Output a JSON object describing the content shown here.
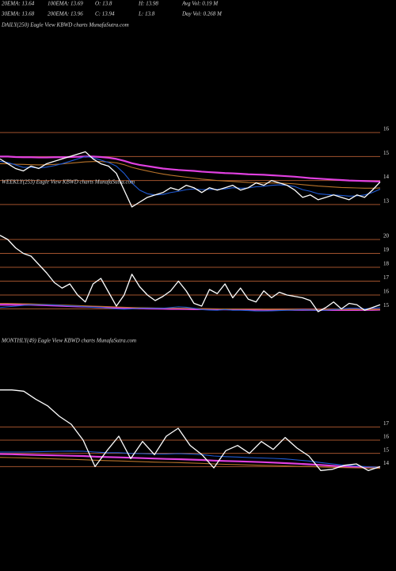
{
  "header": [
    [
      "20EMA: 13.64",
      "100EMA: 13.69",
      "O: 13.8",
      "H: 13.98",
      "Avg Vol: 0.19 M"
    ],
    [
      "30EMA: 13.68",
      "200EMA: 13.96",
      "C: 13.94",
      "L: 13.8",
      "Day Vol: 0.268 M"
    ]
  ],
  "chart_data": [
    {
      "type": "line",
      "title": "DAILY(250) Eagle View KBWD charts MunafaSutra.com",
      "categories": [
        null,
        null,
        null,
        null,
        null,
        null,
        null,
        null,
        null,
        null,
        null,
        null,
        null,
        null,
        null,
        null,
        null,
        null,
        null,
        null,
        null,
        null,
        null,
        null,
        null,
        null,
        null,
        null,
        null,
        null,
        null,
        null,
        null,
        null,
        null,
        null,
        null,
        null,
        null,
        null,
        null,
        null,
        null,
        null,
        null,
        null,
        null,
        null,
        null,
        null
      ],
      "ylim": [
        12.6,
        16.4
      ],
      "yticks": [
        13,
        14,
        15,
        16
      ],
      "grid": true,
      "grid_color": "#a0522d",
      "series": [
        {
          "color": "#e040e0",
          "values": [
            15.0,
            15.0,
            14.98,
            14.97,
            14.97,
            14.96,
            14.96,
            14.97,
            14.97,
            14.98,
            14.99,
            15.0,
            15.0,
            14.98,
            14.95,
            14.9,
            14.82,
            14.72,
            14.65,
            14.6,
            14.55,
            14.5,
            14.47,
            14.44,
            14.42,
            14.4,
            14.37,
            14.35,
            14.33,
            14.31,
            14.3,
            14.28,
            14.26,
            14.25,
            14.24,
            14.22,
            14.2,
            14.18,
            14.16,
            14.13,
            14.1,
            14.08,
            14.06,
            14.04,
            14.02,
            14.0,
            13.99,
            13.98,
            13.97,
            13.96
          ]
        },
        {
          "color": "#b8732a",
          "values": [
            14.7,
            14.7,
            14.68,
            14.67,
            14.66,
            14.65,
            14.66,
            14.67,
            14.69,
            14.72,
            14.75,
            14.78,
            14.79,
            14.79,
            14.77,
            14.74,
            14.66,
            14.55,
            14.47,
            14.4,
            14.33,
            14.27,
            14.22,
            14.18,
            14.14,
            14.1,
            14.06,
            14.03,
            14.0,
            13.98,
            13.96,
            13.94,
            13.92,
            13.91,
            13.9,
            13.9,
            13.89,
            13.88,
            13.86,
            13.83,
            13.8,
            13.77,
            13.75,
            13.73,
            13.71,
            13.7,
            13.69,
            13.68,
            13.68,
            13.69
          ]
        },
        {
          "color": "#1f5bd6",
          "values": [
            14.8,
            14.75,
            14.65,
            14.55,
            14.55,
            14.52,
            14.56,
            14.62,
            14.7,
            14.8,
            14.9,
            15.0,
            14.95,
            14.85,
            14.75,
            14.6,
            14.3,
            13.9,
            13.6,
            13.45,
            13.4,
            13.42,
            13.5,
            13.55,
            13.62,
            13.65,
            13.62,
            13.63,
            13.63,
            13.65,
            13.7,
            13.68,
            13.69,
            13.74,
            13.76,
            13.8,
            13.82,
            13.8,
            13.75,
            13.62,
            13.55,
            13.45,
            13.42,
            13.4,
            13.38,
            13.35,
            13.36,
            13.4,
            13.5,
            13.64
          ]
        },
        {
          "color": "#ffffff",
          "values": [
            14.9,
            14.7,
            14.5,
            14.4,
            14.6,
            14.5,
            14.7,
            14.8,
            14.9,
            15.0,
            15.1,
            15.2,
            14.9,
            14.7,
            14.6,
            14.3,
            13.6,
            12.9,
            13.1,
            13.3,
            13.4,
            13.5,
            13.7,
            13.6,
            13.8,
            13.7,
            13.5,
            13.7,
            13.6,
            13.7,
            13.8,
            13.6,
            13.7,
            13.9,
            13.8,
            14.0,
            13.9,
            13.8,
            13.6,
            13.3,
            13.4,
            13.2,
            13.3,
            13.4,
            13.3,
            13.2,
            13.4,
            13.3,
            13.6,
            13.94
          ]
        }
      ]
    },
    {
      "type": "line",
      "title": "WEEKLY(253) Eagle View KBWD charts MunafaSutra.com",
      "categories": [
        null,
        null,
        null,
        null,
        null,
        null,
        null,
        null,
        null,
        null,
        null,
        null,
        null,
        null,
        null,
        null,
        null,
        null,
        null,
        null,
        null,
        null,
        null,
        null,
        null,
        null,
        null,
        null,
        null,
        null,
        null,
        null,
        null,
        null,
        null,
        null,
        null,
        null,
        null,
        null,
        null,
        null,
        null,
        null,
        null,
        null,
        null,
        null,
        null,
        null
      ],
      "ylim": [
        14.4,
        20.4
      ],
      "yticks": [
        15,
        16,
        17,
        18,
        19,
        20
      ],
      "grid": true,
      "grid_color": "#a0522d",
      "series": [
        {
          "color": "#e040e0",
          "values": [
            15.3,
            15.3,
            15.3,
            15.3,
            15.3,
            15.28,
            15.26,
            15.24,
            15.22,
            15.2,
            15.18,
            15.16,
            15.14,
            15.12,
            15.1,
            15.08,
            15.06,
            15.05,
            15.04,
            15.03,
            15.02,
            15.01,
            15.0,
            15.0,
            14.99,
            14.98,
            14.98,
            14.97,
            14.97,
            14.96,
            14.96,
            14.95,
            14.95,
            14.95,
            14.94,
            14.94,
            14.94,
            14.94,
            14.93,
            14.93,
            14.93,
            14.92,
            14.92,
            14.92,
            14.92,
            14.92,
            14.92,
            14.93,
            14.93,
            14.94
          ]
        },
        {
          "color": "#b8732a",
          "values": [
            15.4,
            15.4,
            15.38,
            15.37,
            15.36,
            15.34,
            15.32,
            15.3,
            15.28,
            15.26,
            15.24,
            15.22,
            15.2,
            15.18,
            15.16,
            15.14,
            15.12,
            15.1,
            15.09,
            15.08,
            15.07,
            15.06,
            15.05,
            15.05,
            15.04,
            15.03,
            15.02,
            15.01,
            15.0,
            15.0,
            14.99,
            14.99,
            14.98,
            14.98,
            14.97,
            14.97,
            14.96,
            14.96,
            14.96,
            14.95,
            14.95,
            14.95,
            14.95,
            14.95,
            14.95,
            14.95,
            14.95,
            14.95,
            14.95,
            14.95
          ]
        },
        {
          "color": "#1f5bd6",
          "values": [
            15.1,
            15.15,
            15.2,
            15.25,
            15.3,
            15.3,
            15.3,
            15.28,
            15.25,
            15.22,
            15.2,
            15.15,
            15.12,
            15.1,
            15.05,
            15.0,
            14.98,
            15.0,
            15.05,
            15.05,
            15.05,
            15.05,
            15.1,
            15.15,
            15.12,
            15.05,
            14.95,
            14.92,
            14.9,
            14.95,
            14.9,
            14.9,
            14.88,
            14.85,
            14.85,
            14.86,
            14.88,
            14.9,
            14.92,
            14.93,
            14.92,
            14.9,
            14.9,
            14.95,
            15.0,
            15.05,
            15.05,
            15.0,
            15.05,
            15.1
          ]
        },
        {
          "color": "#ffffff",
          "values": [
            20.3,
            20.0,
            19.4,
            19.0,
            18.8,
            18.2,
            17.6,
            16.9,
            16.5,
            16.8,
            16.0,
            15.5,
            16.8,
            17.2,
            16.2,
            15.2,
            16.0,
            17.5,
            16.6,
            16.0,
            15.6,
            15.9,
            16.3,
            17.0,
            16.3,
            15.4,
            15.2,
            16.4,
            16.1,
            16.8,
            15.8,
            16.5,
            15.7,
            15.5,
            16.3,
            15.8,
            16.2,
            16.0,
            15.9,
            15.8,
            15.6,
            14.8,
            15.1,
            15.5,
            15.0,
            15.4,
            15.3,
            14.9,
            15.1,
            15.3
          ]
        }
      ]
    },
    {
      "type": "line",
      "title": "MONTHLY(49) Eagle View KBWD charts MunafaSutra.com",
      "categories": [
        null,
        null,
        null,
        null,
        null,
        null,
        null,
        null,
        null,
        null,
        null,
        null,
        null,
        null,
        null,
        null,
        null,
        null,
        null,
        null,
        null,
        null,
        null,
        null,
        null,
        null,
        null,
        null,
        null,
        null,
        null,
        null,
        null
      ],
      "ylim": [
        13.3,
        20.2
      ],
      "yticks": [
        14,
        15,
        16,
        17
      ],
      "grid": true,
      "grid_color": "#a0522d",
      "series": [
        {
          "color": "#e040e0",
          "values": [
            14.95,
            14.93,
            14.9,
            14.88,
            14.86,
            14.84,
            14.82,
            14.8,
            14.75,
            14.72,
            14.7,
            14.67,
            14.64,
            14.61,
            14.58,
            14.56,
            14.53,
            14.5,
            14.45,
            14.42,
            14.4,
            14.37,
            14.34,
            14.3,
            14.26,
            14.22,
            14.17,
            14.12,
            14.06,
            14.0,
            13.96,
            13.93,
            13.91
          ]
        },
        {
          "color": "#b8732a",
          "values": [
            14.7,
            14.68,
            14.66,
            14.63,
            14.6,
            14.57,
            14.55,
            14.52,
            14.48,
            14.45,
            14.43,
            14.4,
            14.37,
            14.34,
            14.32,
            14.3,
            14.27,
            14.24,
            14.2,
            14.17,
            14.15,
            14.12,
            14.1,
            14.08,
            14.05,
            14.02,
            14.0,
            13.97,
            13.94,
            13.92,
            13.9,
            13.89,
            13.88
          ]
        },
        {
          "color": "#1f5bd6",
          "values": [
            15.1,
            15.1,
            15.1,
            15.12,
            15.14,
            15.16,
            15.17,
            15.16,
            15.1,
            15.05,
            15.05,
            15.0,
            14.98,
            14.95,
            14.95,
            14.98,
            14.95,
            14.9,
            14.8,
            14.75,
            14.72,
            14.68,
            14.65,
            14.62,
            14.58,
            14.5,
            14.42,
            14.3,
            14.2,
            14.1,
            14.05,
            13.98,
            13.95
          ]
        },
        {
          "color": "#ffffff",
          "values": [
            19.8,
            19.8,
            19.7,
            19.1,
            18.6,
            17.8,
            17.2,
            16.0,
            14.0,
            15.2,
            16.3,
            14.6,
            15.9,
            14.9,
            16.3,
            16.9,
            15.6,
            14.9,
            13.9,
            15.2,
            15.6,
            15.0,
            15.9,
            15.3,
            16.2,
            15.4,
            14.8,
            13.7,
            13.8,
            14.1,
            14.2,
            13.7,
            14.0
          ]
        }
      ]
    }
  ]
}
